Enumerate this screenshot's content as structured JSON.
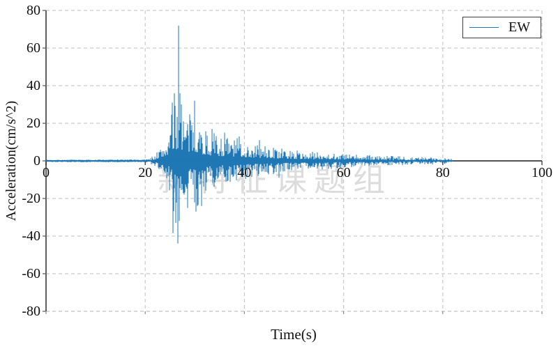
{
  "figure": {
    "watermark": "新特征课题组",
    "legend": {
      "label": "EW"
    }
  },
  "chart_data": {
    "type": "line",
    "title": "",
    "xlabel": "Time(s)",
    "ylabel": "Acceleration(cm/s^2)",
    "xlim": [
      0,
      100
    ],
    "ylim": [
      -80,
      80
    ],
    "xticks": [
      0,
      20,
      40,
      60,
      80,
      100
    ],
    "yticks": [
      80,
      60,
      40,
      20,
      0,
      -20,
      -40,
      -60,
      -80
    ],
    "grid": "dashed",
    "legend_position": "upper right",
    "series": [
      {
        "name": "EW",
        "color": "#1f77b4",
        "units": "cm/s^2",
        "signal_start_time_s": 0,
        "strong_motion_onset_s": 21,
        "signal_end_time_s": 82,
        "peak_max": {
          "t": 26.7,
          "value": 72
        },
        "peak_min": {
          "t": 26.6,
          "value": -44
        },
        "envelope_t_pos_neg": [
          [
            0,
            0.6,
            0.6
          ],
          [
            20,
            0.7,
            0.7
          ],
          [
            21,
            1.5,
            1.5
          ],
          [
            22,
            4,
            3.5
          ],
          [
            23,
            7,
            6
          ],
          [
            24,
            12,
            10
          ],
          [
            25,
            22,
            18
          ],
          [
            25.7,
            30,
            34
          ],
          [
            26.3,
            34,
            38
          ],
          [
            26.8,
            40,
            36
          ],
          [
            27.5,
            30,
            28
          ],
          [
            28.5,
            24,
            24
          ],
          [
            29.5,
            26,
            24
          ],
          [
            30.5,
            26,
            25
          ],
          [
            31.5,
            19,
            22
          ],
          [
            33,
            16,
            16
          ],
          [
            35,
            14,
            13
          ],
          [
            37,
            13,
            12
          ],
          [
            39,
            12,
            11
          ],
          [
            41,
            10,
            9.5
          ],
          [
            43,
            9,
            8.5
          ],
          [
            45,
            8,
            7.5
          ],
          [
            47,
            7,
            6.5
          ],
          [
            49,
            6,
            5.5
          ],
          [
            51,
            5.5,
            5
          ],
          [
            54,
            4.8,
            4.5
          ],
          [
            56,
            5.2,
            4.8
          ],
          [
            58,
            4.5,
            4.2
          ],
          [
            60,
            4,
            3.8
          ],
          [
            62,
            3.6,
            3.4
          ],
          [
            64,
            3.3,
            3.1
          ],
          [
            66,
            3,
            3
          ],
          [
            68,
            2.8,
            2.7
          ],
          [
            70,
            2.6,
            2.5
          ],
          [
            73,
            2.3,
            2.2
          ],
          [
            76,
            2.1,
            2
          ],
          [
            79,
            2,
            1.9
          ],
          [
            81,
            1.7,
            1.6
          ],
          [
            82,
            1.2,
            1.2
          ]
        ],
        "notable_spikes_t_value": [
          [
            26.7,
            72
          ],
          [
            26.6,
            -44
          ],
          [
            25.6,
            -38.5
          ],
          [
            26.1,
            -33
          ],
          [
            25.5,
            31
          ],
          [
            25.9,
            36
          ],
          [
            27.0,
            36
          ],
          [
            27.3,
            30
          ],
          [
            29.9,
            32
          ],
          [
            30.2,
            -27
          ],
          [
            28.6,
            -25
          ],
          [
            31.4,
            -24
          ],
          [
            33.5,
            17
          ],
          [
            36.0,
            15
          ],
          [
            39.0,
            13
          ],
          [
            43.0,
            11
          ],
          [
            47.0,
            -9
          ]
        ]
      }
    ],
    "style": {
      "line_color": "#1f77b4",
      "grid_color": "#c9c9c9",
      "spine_color": "#606060",
      "zero_axis_color": "#3a3a3a",
      "watermark_color": "#dcdcdc"
    }
  }
}
